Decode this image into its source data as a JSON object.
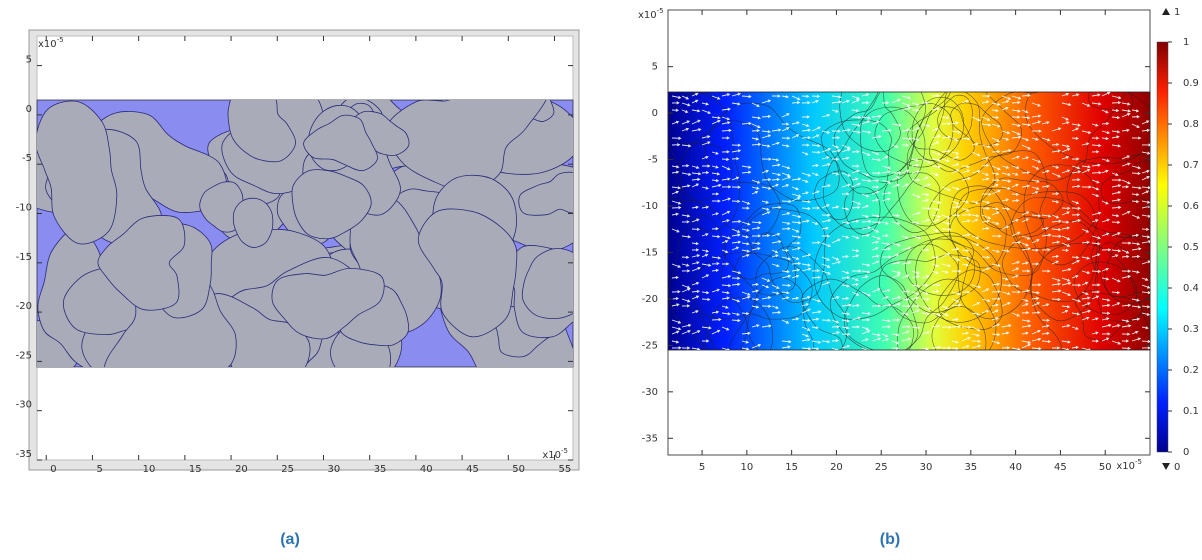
{
  "panels": [
    {
      "label": "(a)",
      "multiplier": {
        "base": "x10",
        "exponent": "-5"
      },
      "xlim": [
        -1,
        57
      ],
      "xticks": [
        0,
        5,
        10,
        15,
        20,
        25,
        30,
        35,
        40,
        45,
        50,
        55
      ],
      "ylim": [
        -35,
        8
      ],
      "yticks": [
        5,
        0,
        -5,
        -10,
        -15,
        -20,
        -25,
        -30,
        -35
      ]
    },
    {
      "label": "(b)",
      "multiplier": {
        "base": "x10",
        "exponent": "-5"
      },
      "xlim": [
        1.2,
        55
      ],
      "xticks": [
        5,
        10,
        15,
        20,
        25,
        30,
        35,
        40,
        45,
        50
      ],
      "ylim": [
        -36.8,
        11.1
      ],
      "yticks": [
        5,
        0,
        -5,
        -10,
        -15,
        -20,
        -25,
        -30,
        -35
      ],
      "colorbar": {
        "lim": [
          0,
          1
        ],
        "ticks": [
          0,
          0.1,
          0.2,
          0.3,
          0.4,
          0.5,
          0.6,
          0.7,
          0.8,
          0.9,
          1
        ],
        "max": 1,
        "min": 0
      }
    }
  ]
}
